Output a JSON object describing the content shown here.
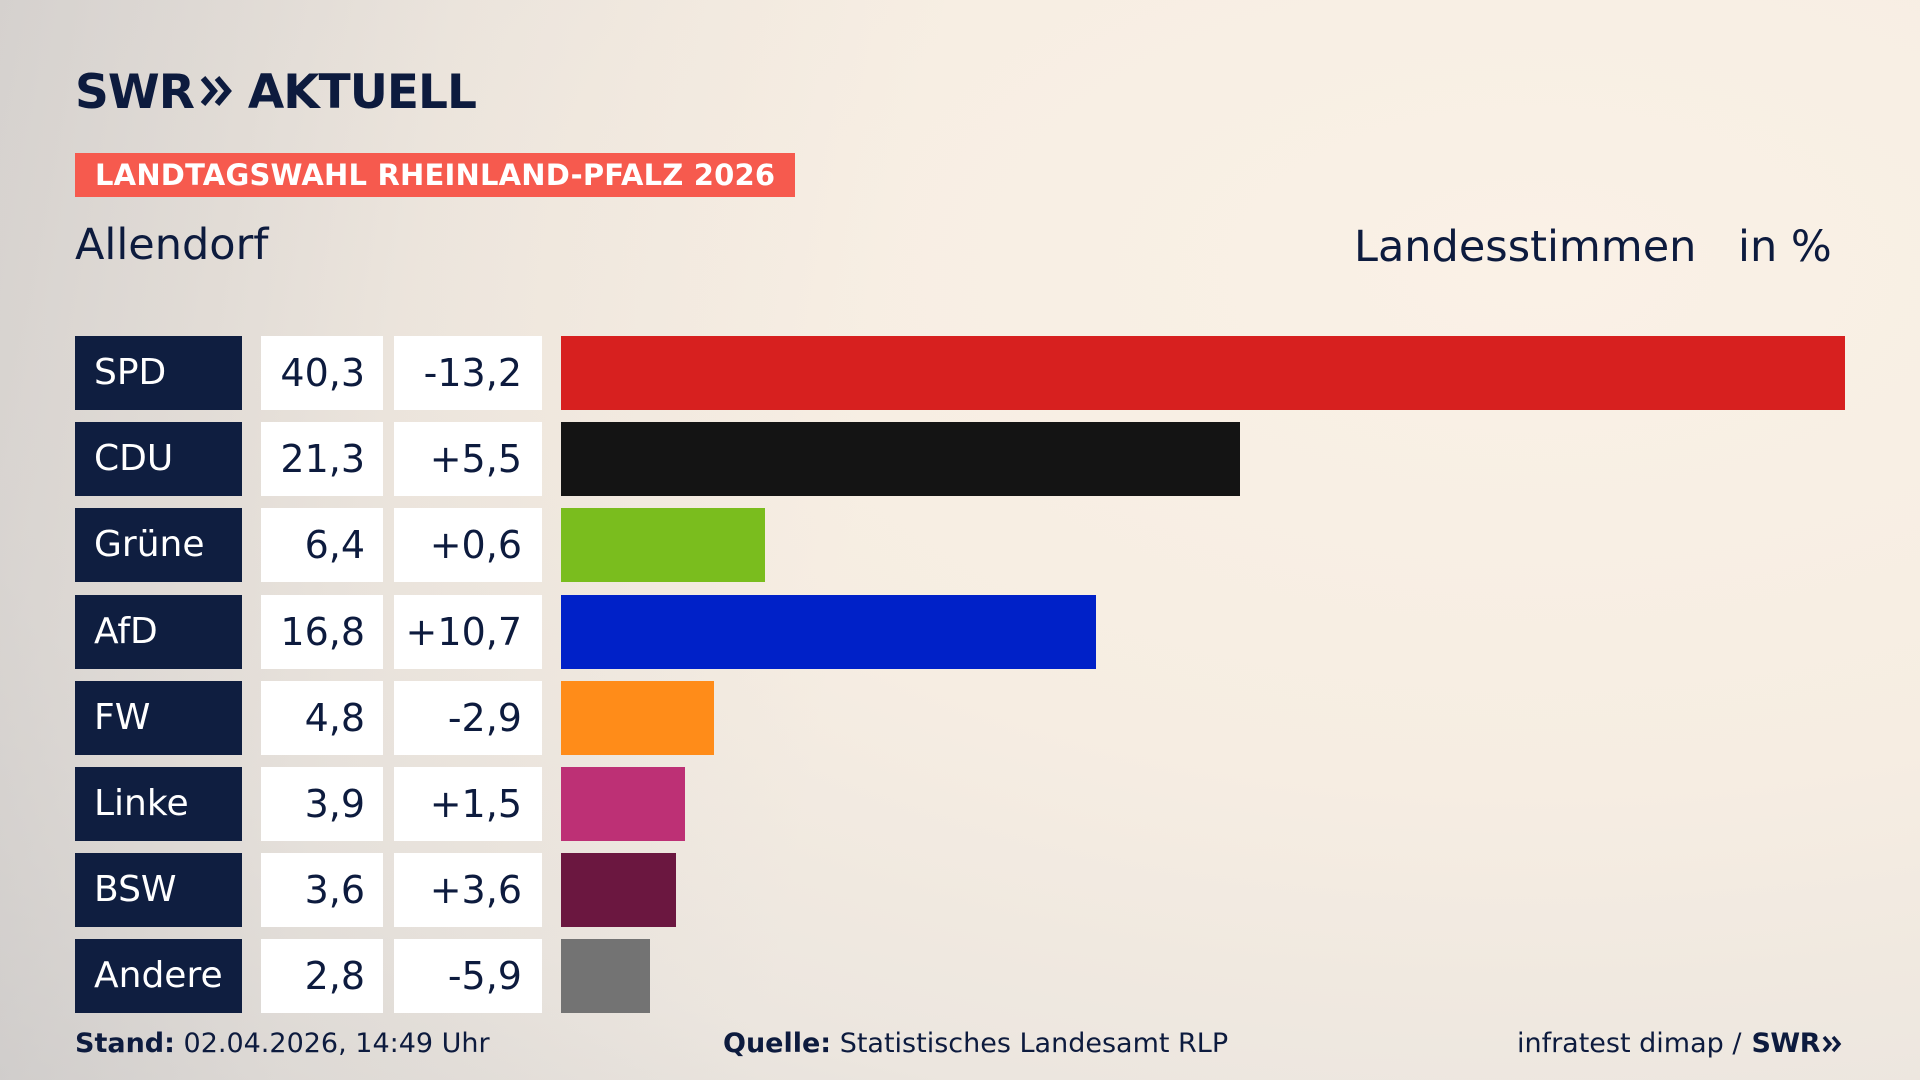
{
  "header": {
    "logo_text_left": "SWR",
    "logo_text_right": "AKTUELL",
    "tag": "LANDTAGSWAHL RHEINLAND-PFALZ 2026",
    "place": "Allendorf",
    "measure": "Landesstimmen",
    "unit": "in %"
  },
  "colors": {
    "accent_tag": "#f65a4e",
    "label_bg": "#0f1e40",
    "text": "#0d1b3e"
  },
  "chart_data": {
    "type": "bar",
    "orientation": "horizontal",
    "categories": [
      "SPD",
      "CDU",
      "Grüne",
      "AfD",
      "FW",
      "Linke",
      "BSW",
      "Andere"
    ],
    "values": [
      40.3,
      21.3,
      6.4,
      16.8,
      4.8,
      3.9,
      3.6,
      2.8
    ],
    "values_label": [
      "40,3",
      "21,3",
      "6,4",
      "16,8",
      "4,8",
      "3,9",
      "3,6",
      "2,8"
    ],
    "changes": [
      -13.2,
      5.5,
      0.6,
      10.7,
      -2.9,
      1.5,
      3.6,
      -5.9
    ],
    "changes_label": [
      "-13,2",
      "+5,5",
      "+0,6",
      "+10,7",
      "-2,9",
      "+1,5",
      "+3,6",
      "-5,9"
    ],
    "bar_colors": [
      "#d7201f",
      "#141414",
      "#7abd1e",
      "#0021c8",
      "#ff8c19",
      "#bd3075",
      "#6b1740",
      "#737373"
    ],
    "xlim": [
      0,
      40.3
    ],
    "title": "Allendorf",
    "grid": false,
    "legend": "none"
  },
  "footer": {
    "stand_label": "Stand:",
    "stand_value": "02.04.2026, 14:49 Uhr",
    "source_label": "Quelle:",
    "source_value": "Statistisches Landesamt RLP",
    "credit": "infratest dimap /",
    "credit_logo": "SWR"
  }
}
